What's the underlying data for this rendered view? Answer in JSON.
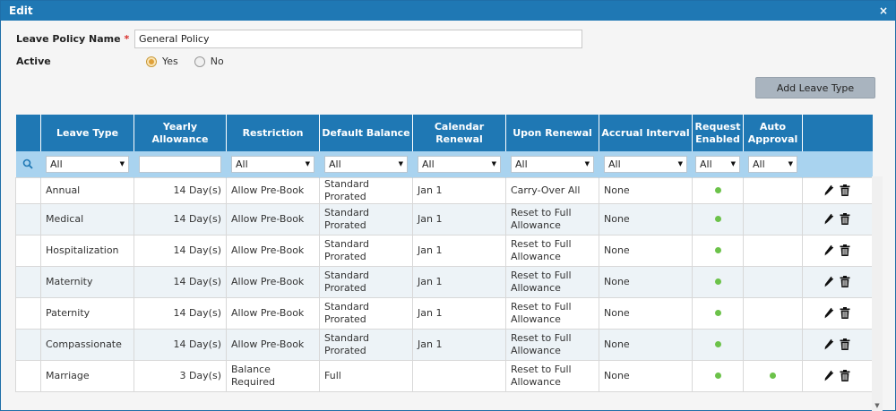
{
  "window": {
    "title": "Edit",
    "close_glyph": "×"
  },
  "form": {
    "name_label": "Leave Policy Name",
    "required_mark": "*",
    "name_value": "General Policy",
    "active_label": "Active",
    "active_options": [
      "Yes",
      "No"
    ],
    "active_selected": "Yes"
  },
  "toolbar": {
    "add_label": "Add Leave Type"
  },
  "table": {
    "columns": [
      "Leave Type",
      "Yearly Allowance",
      "Restriction",
      "Default Balance",
      "Calendar Renewal",
      "Upon Renewal",
      "Accrual Interval",
      "Request Enabled",
      "Auto Approval"
    ],
    "filters": {
      "leave_type": "All",
      "yearly_allowance": "",
      "restriction": "All",
      "default_balance": "All",
      "calendar_renewal": "All",
      "upon_renewal": "All",
      "accrual_interval": "All",
      "request_enabled": "All",
      "auto_approval": "All"
    },
    "rows": [
      {
        "leave_type": "Annual",
        "allowance": "14 Day(s)",
        "restriction": "Allow Pre-Book",
        "default_balance": "Standard Prorated",
        "calendar_renewal": "Jan 1",
        "upon_renewal": "Carry-Over All",
        "accrual": "None",
        "request_enabled": true,
        "auto_approval": false
      },
      {
        "leave_type": "Medical",
        "allowance": "14 Day(s)",
        "restriction": "Allow Pre-Book",
        "default_balance": "Standard Prorated",
        "calendar_renewal": "Jan 1",
        "upon_renewal": "Reset to Full Allowance",
        "accrual": "None",
        "request_enabled": true,
        "auto_approval": false
      },
      {
        "leave_type": "Hospitalization",
        "allowance": "14 Day(s)",
        "restriction": "Allow Pre-Book",
        "default_balance": "Standard Prorated",
        "calendar_renewal": "Jan 1",
        "upon_renewal": "Reset to Full Allowance",
        "accrual": "None",
        "request_enabled": true,
        "auto_approval": false
      },
      {
        "leave_type": "Maternity",
        "allowance": "14 Day(s)",
        "restriction": "Allow Pre-Book",
        "default_balance": "Standard Prorated",
        "calendar_renewal": "Jan 1",
        "upon_renewal": "Reset to Full Allowance",
        "accrual": "None",
        "request_enabled": true,
        "auto_approval": false
      },
      {
        "leave_type": "Paternity",
        "allowance": "14 Day(s)",
        "restriction": "Allow Pre-Book",
        "default_balance": "Standard Prorated",
        "calendar_renewal": "Jan 1",
        "upon_renewal": "Reset to Full Allowance",
        "accrual": "None",
        "request_enabled": true,
        "auto_approval": false
      },
      {
        "leave_type": "Compassionate",
        "allowance": "14 Day(s)",
        "restriction": "Allow Pre-Book",
        "default_balance": "Standard Prorated",
        "calendar_renewal": "Jan 1",
        "upon_renewal": "Reset to Full Allowance",
        "accrual": "None",
        "request_enabled": true,
        "auto_approval": false
      },
      {
        "leave_type": "Marriage",
        "allowance": "3 Day(s)",
        "restriction": "Balance Required",
        "default_balance": "Full",
        "calendar_renewal": "",
        "upon_renewal": "Reset to Full Allowance",
        "accrual": "None",
        "request_enabled": true,
        "auto_approval": true
      }
    ]
  },
  "colors": {
    "header": "#1f78b4",
    "filter_bar": "#a9d3ef",
    "enabled_dot": "#6cc24a",
    "radio_selected": "#e0a13a",
    "required": "#d9302c"
  },
  "icons": {
    "search": "search-icon",
    "edit": "pencil-icon",
    "delete": "trash-icon",
    "dropdown": "chevron-down-icon"
  }
}
